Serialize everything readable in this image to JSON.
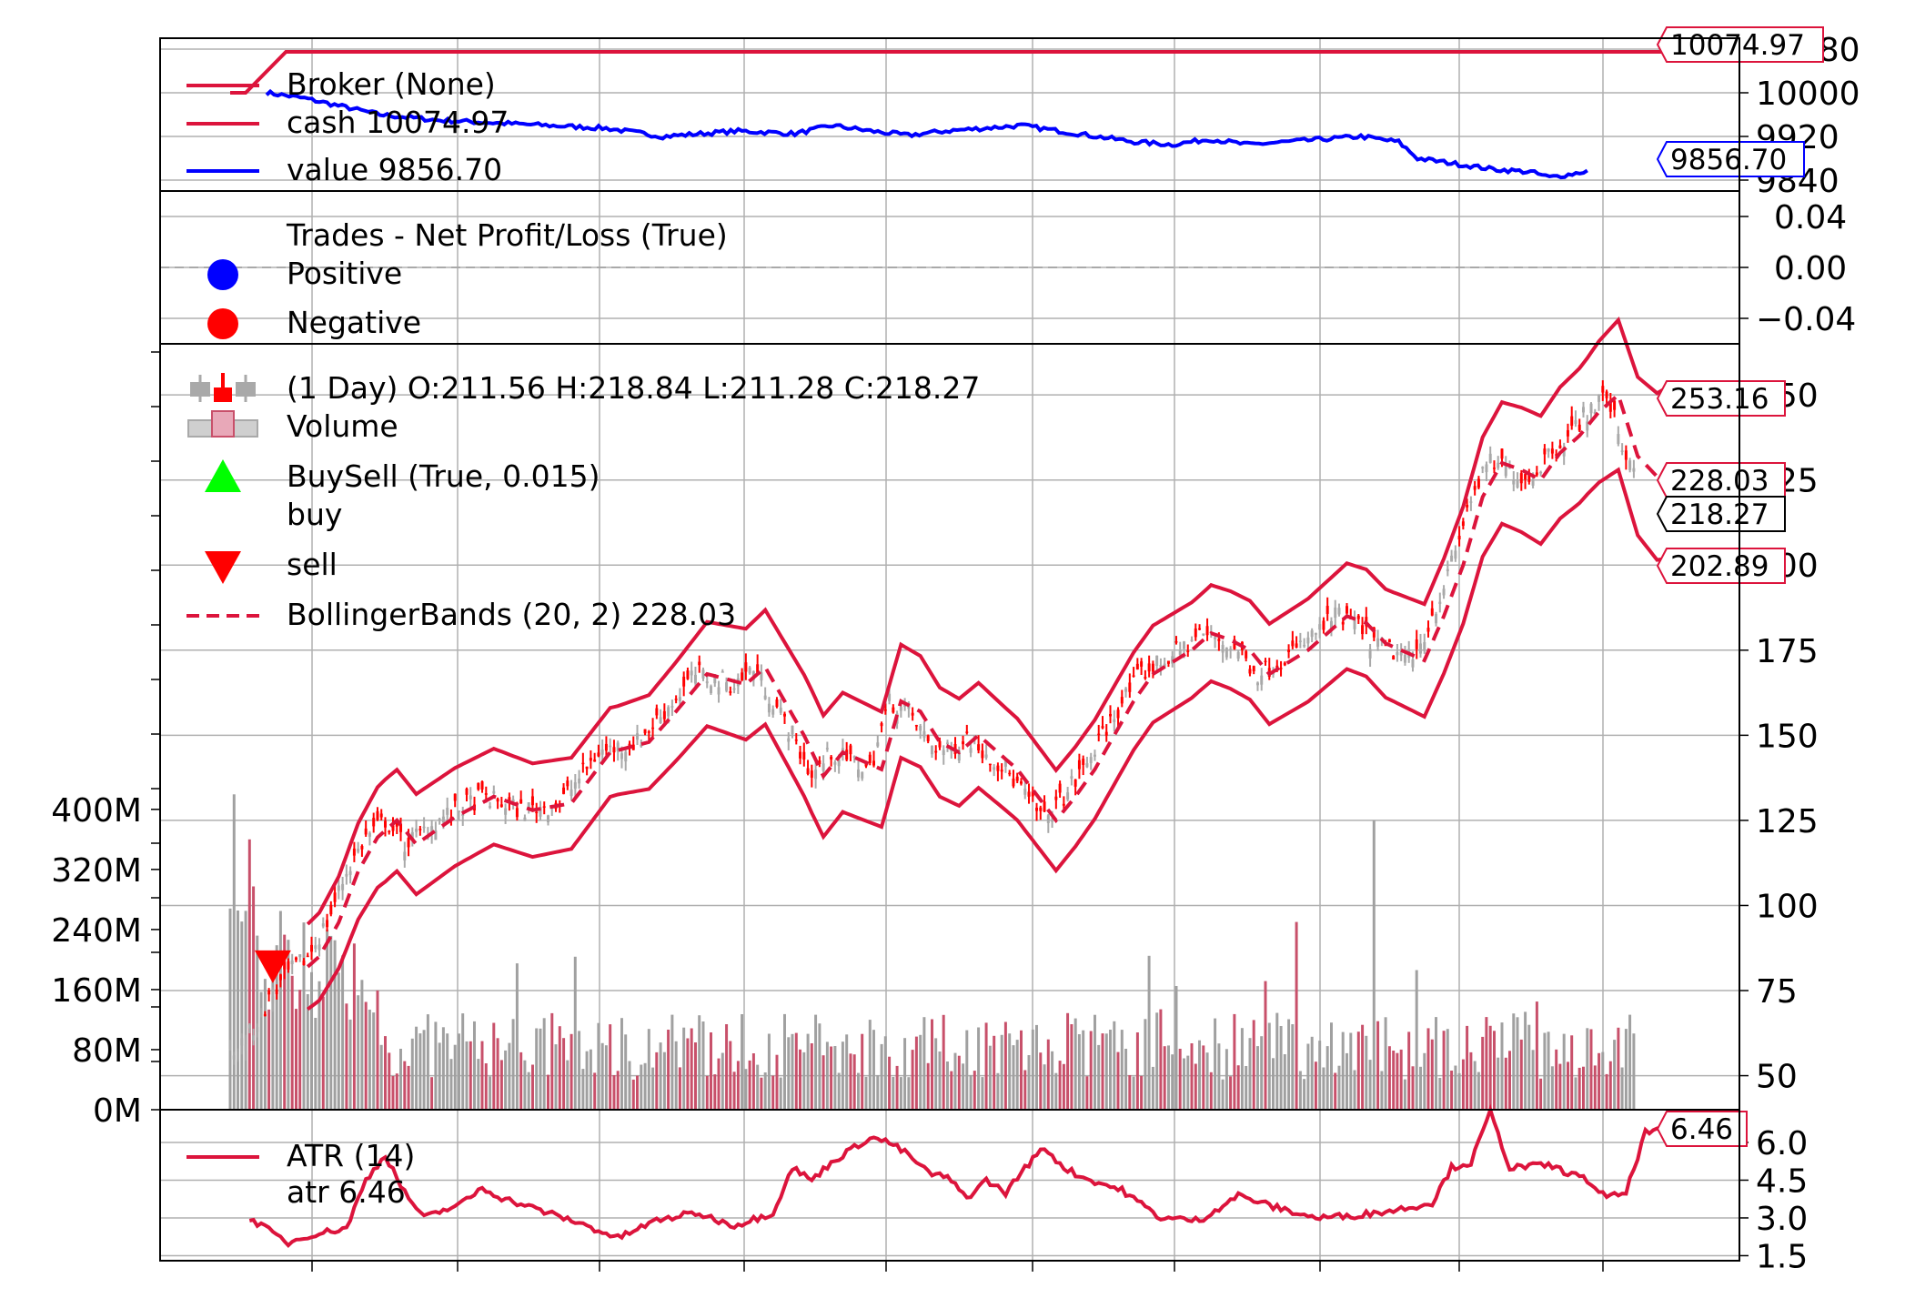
{
  "colors": {
    "crimson": "#dc143c",
    "blue": "#0000ff",
    "red": "#ff0000",
    "lime": "#00ff00",
    "gray": "#a9a9a9",
    "grid": "#b0b0b0",
    "black": "#000000",
    "vol_down": "#c8506a",
    "vol_up": "#a0a0a0"
  },
  "chart_data": [
    {
      "type": "line",
      "name": "broker",
      "legend": {
        "entries": [
          {
            "label": "Broker (None)",
            "style": "line",
            "color": "#dc143c"
          },
          {
            "label": "cash 10074.97",
            "style": "line",
            "color": "#dc143c"
          },
          {
            "label": "value 9856.70",
            "style": "line",
            "color": "#0000ff"
          }
        ]
      },
      "yticks": [
        "9840",
        "9920",
        "10000",
        "10080"
      ],
      "y_range": [
        9820,
        10100
      ],
      "series": [
        {
          "key": "cash",
          "color": "#dc143c",
          "points": [
            [
              0,
              10000
            ],
            [
              4,
              10000
            ],
            [
              5,
              10074.97
            ],
            [
              350,
              10074.97
            ]
          ]
        },
        {
          "key": "value",
          "color": "#0000ff",
          "points": [
            [
              0,
              10000
            ],
            [
              10,
              9990
            ],
            [
              20,
              9975
            ],
            [
              30,
              9960
            ],
            [
              45,
              9950
            ],
            [
              60,
              9945
            ],
            [
              75,
              9940
            ],
            [
              90,
              9935
            ],
            [
              105,
              9920
            ],
            [
              115,
              9925
            ],
            [
              125,
              9930
            ],
            [
              140,
              9925
            ],
            [
              150,
              9940
            ],
            [
              160,
              9930
            ],
            [
              170,
              9922
            ],
            [
              180,
              9930
            ],
            [
              190,
              9935
            ],
            [
              200,
              9940
            ],
            [
              210,
              9930
            ],
            [
              220,
              9920
            ],
            [
              230,
              9910
            ],
            [
              240,
              9905
            ],
            [
              250,
              9915
            ],
            [
              260,
              9905
            ],
            [
              270,
              9910
            ],
            [
              280,
              9915
            ],
            [
              290,
              9920
            ],
            [
              300,
              9910
            ],
            [
              305,
              9880
            ],
            [
              315,
              9870
            ],
            [
              325,
              9860
            ],
            [
              335,
              9855
            ],
            [
              340,
              9845
            ],
            [
              345,
              9850
            ],
            [
              350,
              9856.7
            ]
          ]
        }
      ],
      "value_tags": [
        {
          "text": "10074.97",
          "value": 10074.97,
          "color": "#dc143c"
        },
        {
          "text": "9856.70",
          "value": 9856.7,
          "color": "#0000ff"
        }
      ]
    },
    {
      "type": "scatter",
      "name": "trades",
      "legend": {
        "entries": [
          {
            "label": "Trades - Net Profit/Loss (True)",
            "style": "none"
          },
          {
            "label": "Positive",
            "style": "circle",
            "color": "#0000ff"
          },
          {
            "label": "Negative",
            "style": "circle",
            "color": "#ff0000"
          }
        ]
      },
      "yticks": [
        "−0.04",
        "0.00",
        "0.04"
      ],
      "y_range": [
        -0.06,
        0.06
      ],
      "points": []
    },
    {
      "type": "candlestick",
      "name": "price",
      "legend": {
        "entries": [
          {
            "label": " (1 Day) O:211.56 H:218.84 L:211.28 C:218.27",
            "style": "ohlc"
          },
          {
            "label": "Volume",
            "style": "volume"
          },
          {
            "label": "BuySell (True, 0.015)",
            "style": "triangle-up",
            "color": "#00ff00"
          },
          {
            "label": "buy",
            "style": "none"
          },
          {
            "label": "sell",
            "style": "triangle-down",
            "color": "#ff0000"
          },
          {
            "label": "BollingerBands (20, 2) 228.03",
            "style": "dashed",
            "color": "#dc143c"
          }
        ]
      },
      "yticks": [
        "50",
        "75",
        "100",
        "125",
        "150",
        "175",
        "200",
        "225",
        "250"
      ],
      "y_range": [
        40,
        265
      ],
      "volume_ticks": [
        "0M",
        "80M",
        "160M",
        "240M",
        "320M",
        "400M"
      ],
      "volume_range": [
        0,
        1020
      ],
      "close_path": [
        [
          0,
          56
        ],
        [
          5,
          62
        ],
        [
          10,
          72
        ],
        [
          15,
          80
        ],
        [
          20,
          85
        ],
        [
          25,
          95
        ],
        [
          30,
          110
        ],
        [
          35,
          120
        ],
        [
          40,
          125
        ],
        [
          45,
          118
        ],
        [
          55,
          126
        ],
        [
          65,
          132
        ],
        [
          75,
          128
        ],
        [
          85,
          130
        ],
        [
          95,
          145
        ],
        [
          105,
          148
        ],
        [
          112,
          157
        ],
        [
          120,
          168
        ],
        [
          130,
          165
        ],
        [
          135,
          170
        ],
        [
          140,
          160
        ],
        [
          145,
          150
        ],
        [
          150,
          138
        ],
        [
          155,
          145
        ],
        [
          165,
          140
        ],
        [
          170,
          160
        ],
        [
          175,
          157
        ],
        [
          180,
          148
        ],
        [
          185,
          145
        ],
        [
          190,
          150
        ],
        [
          200,
          140
        ],
        [
          210,
          125
        ],
        [
          215,
          132
        ],
        [
          220,
          140
        ],
        [
          225,
          150
        ],
        [
          230,
          160
        ],
        [
          235,
          168
        ],
        [
          245,
          175
        ],
        [
          250,
          180
        ],
        [
          255,
          178
        ],
        [
          260,
          175
        ],
        [
          265,
          168
        ],
        [
          275,
          175
        ],
        [
          285,
          185
        ],
        [
          290,
          183
        ],
        [
          295,
          177
        ],
        [
          305,
          172
        ],
        [
          310,
          185
        ],
        [
          315,
          200
        ],
        [
          320,
          220
        ],
        [
          325,
          230
        ],
        [
          330,
          228
        ],
        [
          335,
          225
        ],
        [
          340,
          233
        ],
        [
          345,
          238
        ],
        [
          350,
          245
        ],
        [
          355,
          250
        ],
        [
          360,
          232
        ],
        [
          365,
          226
        ],
        [
          370,
          228.03
        ]
      ],
      "band_width": [
        [
          0,
          10
        ],
        [
          40,
          15
        ],
        [
          100,
          13
        ],
        [
          150,
          18
        ],
        [
          200,
          15
        ],
        [
          250,
          14
        ],
        [
          300,
          16
        ],
        [
          330,
          18
        ],
        [
          350,
          20
        ],
        [
          370,
          25
        ]
      ],
      "sell_markers": [
        {
          "x": 11,
          "price": 82
        }
      ],
      "value_tags": [
        {
          "text": "253.16",
          "value": 253.16,
          "color": "#dc143c"
        },
        {
          "text": "228.03",
          "value": 228.03,
          "color": "#dc143c"
        },
        {
          "text": "218.27",
          "value": 218.27,
          "color": "#000000"
        },
        {
          "text": "202.89",
          "value": 202.89,
          "color": "#dc143c"
        }
      ]
    },
    {
      "type": "line",
      "name": "atr",
      "legend": {
        "entries": [
          {
            "label": "ATR (14)",
            "style": "line",
            "color": "#dc143c"
          },
          {
            "label": "atr 6.46",
            "style": "none"
          }
        ]
      },
      "yticks": [
        "1.5",
        "3.0",
        "4.5",
        "6.0"
      ],
      "y_range": [
        1.3,
        7.3
      ],
      "series": [
        {
          "key": "atr",
          "color": "#dc143c",
          "points": [
            [
              5,
              3.0
            ],
            [
              10,
              2.5
            ],
            [
              15,
              2.0
            ],
            [
              20,
              2.3
            ],
            [
              30,
              2.6
            ],
            [
              35,
              4.5
            ],
            [
              40,
              5.5
            ],
            [
              45,
              4.0
            ],
            [
              50,
              3.0
            ],
            [
              60,
              3.6
            ],
            [
              65,
              4.2
            ],
            [
              70,
              3.8
            ],
            [
              80,
              3.3
            ],
            [
              90,
              2.8
            ],
            [
              100,
              2.2
            ],
            [
              110,
              2.9
            ],
            [
              120,
              3.2
            ],
            [
              130,
              2.7
            ],
            [
              140,
              3.2
            ],
            [
              145,
              5.0
            ],
            [
              150,
              4.5
            ],
            [
              155,
              5.2
            ],
            [
              165,
              6.2
            ],
            [
              170,
              6.0
            ],
            [
              175,
              5.5
            ],
            [
              180,
              4.8
            ],
            [
              185,
              4.6
            ],
            [
              190,
              3.8
            ],
            [
              195,
              4.5
            ],
            [
              200,
              4.0
            ],
            [
              205,
              5.0
            ],
            [
              210,
              5.8
            ],
            [
              215,
              5.0
            ],
            [
              220,
              4.6
            ],
            [
              230,
              4.1
            ],
            [
              240,
              3.0
            ],
            [
              250,
              2.9
            ],
            [
              255,
              3.4
            ],
            [
              260,
              3.9
            ],
            [
              270,
              3.4
            ],
            [
              280,
              3.0
            ],
            [
              290,
              3.1
            ],
            [
              300,
              3.3
            ],
            [
              310,
              3.6
            ],
            [
              315,
              5.0
            ],
            [
              320,
              5.2
            ],
            [
              325,
              7.2
            ],
            [
              330,
              5.0
            ],
            [
              340,
              5.1
            ],
            [
              350,
              4.5
            ],
            [
              355,
              3.8
            ],
            [
              360,
              4.0
            ],
            [
              365,
              6.4
            ],
            [
              370,
              6.46
            ]
          ]
        }
      ],
      "value_tags": [
        {
          "text": "6.46",
          "value": 6.46,
          "color": "#dc143c"
        }
      ]
    }
  ]
}
